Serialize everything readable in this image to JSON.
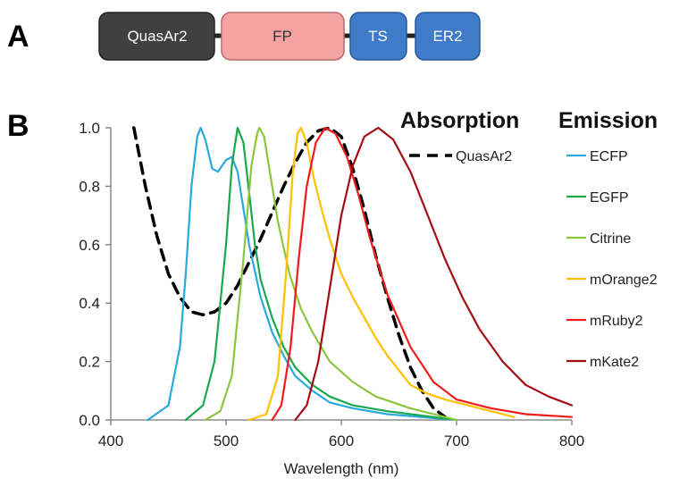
{
  "panels": {
    "a": "A",
    "b": "B"
  },
  "construct": {
    "segments": [
      {
        "label": "QuasAr2",
        "fill": "#404040",
        "text_color": "#ffffff"
      },
      {
        "label": "FP",
        "fill": "#f4a3a3",
        "text_color": "#333333"
      },
      {
        "label": "TS",
        "fill": "#3f7bc6",
        "text_color": "#ffffff"
      },
      {
        "label": "ER2",
        "fill": "#3f7bc6",
        "text_color": "#ffffff"
      }
    ]
  },
  "chart_data": {
    "type": "line",
    "xlabel": "Wavelength (nm)",
    "ylabel": "",
    "xlim": [
      400,
      800
    ],
    "ylim": [
      0,
      1.0
    ],
    "xticks": [
      "400",
      "500",
      "600",
      "700",
      "800"
    ],
    "yticks": [
      "0.0",
      "0.2",
      "0.4",
      "0.6",
      "0.8",
      "1.0"
    ],
    "grid": false,
    "legend_headers": {
      "absorption": "Absorption",
      "emission": "Emission"
    },
    "series": [
      {
        "name": "QuasAr2",
        "group": "absorption",
        "color": "#000000",
        "dash": true,
        "points": [
          [
            420,
            1.0
          ],
          [
            430,
            0.8
          ],
          [
            440,
            0.63
          ],
          [
            450,
            0.5
          ],
          [
            460,
            0.42
          ],
          [
            470,
            0.37
          ],
          [
            480,
            0.36
          ],
          [
            490,
            0.37
          ],
          [
            500,
            0.4
          ],
          [
            510,
            0.46
          ],
          [
            520,
            0.54
          ],
          [
            530,
            0.62
          ],
          [
            540,
            0.71
          ],
          [
            550,
            0.8
          ],
          [
            560,
            0.88
          ],
          [
            570,
            0.95
          ],
          [
            580,
            0.99
          ],
          [
            590,
            1.0
          ],
          [
            600,
            0.97
          ],
          [
            610,
            0.86
          ],
          [
            620,
            0.72
          ],
          [
            630,
            0.56
          ],
          [
            640,
            0.42
          ],
          [
            650,
            0.29
          ],
          [
            660,
            0.18
          ],
          [
            670,
            0.1
          ],
          [
            680,
            0.04
          ],
          [
            690,
            0.01
          ]
        ]
      },
      {
        "name": "ECFP",
        "group": "emission",
        "color": "#29a9dd",
        "points": [
          [
            432,
            0.0
          ],
          [
            450,
            0.05
          ],
          [
            460,
            0.25
          ],
          [
            465,
            0.5
          ],
          [
            470,
            0.8
          ],
          [
            475,
            0.97
          ],
          [
            478,
            1.0
          ],
          [
            482,
            0.96
          ],
          [
            488,
            0.86
          ],
          [
            493,
            0.85
          ],
          [
            500,
            0.89
          ],
          [
            505,
            0.9
          ],
          [
            510,
            0.85
          ],
          [
            520,
            0.6
          ],
          [
            530,
            0.42
          ],
          [
            540,
            0.3
          ],
          [
            550,
            0.22
          ],
          [
            560,
            0.15
          ],
          [
            575,
            0.1
          ],
          [
            590,
            0.06
          ],
          [
            610,
            0.04
          ],
          [
            640,
            0.02
          ],
          [
            700,
            0.0
          ]
        ]
      },
      {
        "name": "EGFP",
        "group": "emission",
        "color": "#1aa84f",
        "points": [
          [
            465,
            0.0
          ],
          [
            480,
            0.05
          ],
          [
            490,
            0.2
          ],
          [
            500,
            0.6
          ],
          [
            505,
            0.87
          ],
          [
            510,
            1.0
          ],
          [
            515,
            0.95
          ],
          [
            520,
            0.78
          ],
          [
            525,
            0.6
          ],
          [
            530,
            0.48
          ],
          [
            540,
            0.35
          ],
          [
            550,
            0.25
          ],
          [
            560,
            0.18
          ],
          [
            575,
            0.12
          ],
          [
            590,
            0.08
          ],
          [
            610,
            0.05
          ],
          [
            640,
            0.03
          ],
          [
            700,
            0.0
          ]
        ]
      },
      {
        "name": "Citrine",
        "group": "emission",
        "color": "#8cc63f",
        "points": [
          [
            482,
            0.0
          ],
          [
            495,
            0.03
          ],
          [
            505,
            0.15
          ],
          [
            515,
            0.55
          ],
          [
            522,
            0.87
          ],
          [
            527,
            0.98
          ],
          [
            529,
            1.0
          ],
          [
            533,
            0.97
          ],
          [
            538,
            0.85
          ],
          [
            545,
            0.68
          ],
          [
            555,
            0.5
          ],
          [
            565,
            0.38
          ],
          [
            575,
            0.3
          ],
          [
            590,
            0.2
          ],
          [
            610,
            0.13
          ],
          [
            630,
            0.08
          ],
          [
            660,
            0.04
          ],
          [
            700,
            0.0
          ]
        ]
      },
      {
        "name": "mOrange2",
        "group": "emission",
        "color": "#ffc000",
        "points": [
          [
            520,
            0.0
          ],
          [
            535,
            0.02
          ],
          [
            545,
            0.15
          ],
          [
            552,
            0.5
          ],
          [
            558,
            0.85
          ],
          [
            562,
            0.98
          ],
          [
            565,
            1.0
          ],
          [
            570,
            0.95
          ],
          [
            576,
            0.83
          ],
          [
            583,
            0.72
          ],
          [
            590,
            0.62
          ],
          [
            600,
            0.5
          ],
          [
            610,
            0.42
          ],
          [
            620,
            0.35
          ],
          [
            630,
            0.28
          ],
          [
            640,
            0.22
          ],
          [
            650,
            0.17
          ],
          [
            660,
            0.12
          ],
          [
            675,
            0.09
          ],
          [
            690,
            0.07
          ],
          [
            710,
            0.05
          ],
          [
            730,
            0.03
          ],
          [
            750,
            0.01
          ]
        ]
      },
      {
        "name": "mRuby2",
        "group": "emission",
        "color": "#ee1c1c",
        "points": [
          [
            540,
            0.0
          ],
          [
            548,
            0.05
          ],
          [
            556,
            0.25
          ],
          [
            563,
            0.55
          ],
          [
            570,
            0.8
          ],
          [
            578,
            0.95
          ],
          [
            586,
            1.0
          ],
          [
            595,
            0.98
          ],
          [
            605,
            0.9
          ],
          [
            615,
            0.77
          ],
          [
            625,
            0.62
          ],
          [
            640,
            0.43
          ],
          [
            660,
            0.25
          ],
          [
            680,
            0.13
          ],
          [
            700,
            0.07
          ],
          [
            730,
            0.04
          ],
          [
            760,
            0.02
          ],
          [
            800,
            0.01
          ]
        ]
      },
      {
        "name": "mKate2",
        "group": "emission",
        "color": "#a50d12",
        "points": [
          [
            560,
            0.0
          ],
          [
            570,
            0.05
          ],
          [
            580,
            0.2
          ],
          [
            590,
            0.45
          ],
          [
            600,
            0.7
          ],
          [
            610,
            0.87
          ],
          [
            620,
            0.97
          ],
          [
            632,
            1.0
          ],
          [
            645,
            0.96
          ],
          [
            660,
            0.85
          ],
          [
            675,
            0.7
          ],
          [
            690,
            0.55
          ],
          [
            705,
            0.42
          ],
          [
            720,
            0.31
          ],
          [
            740,
            0.2
          ],
          [
            760,
            0.12
          ],
          [
            780,
            0.08
          ],
          [
            800,
            0.05
          ]
        ]
      }
    ]
  }
}
